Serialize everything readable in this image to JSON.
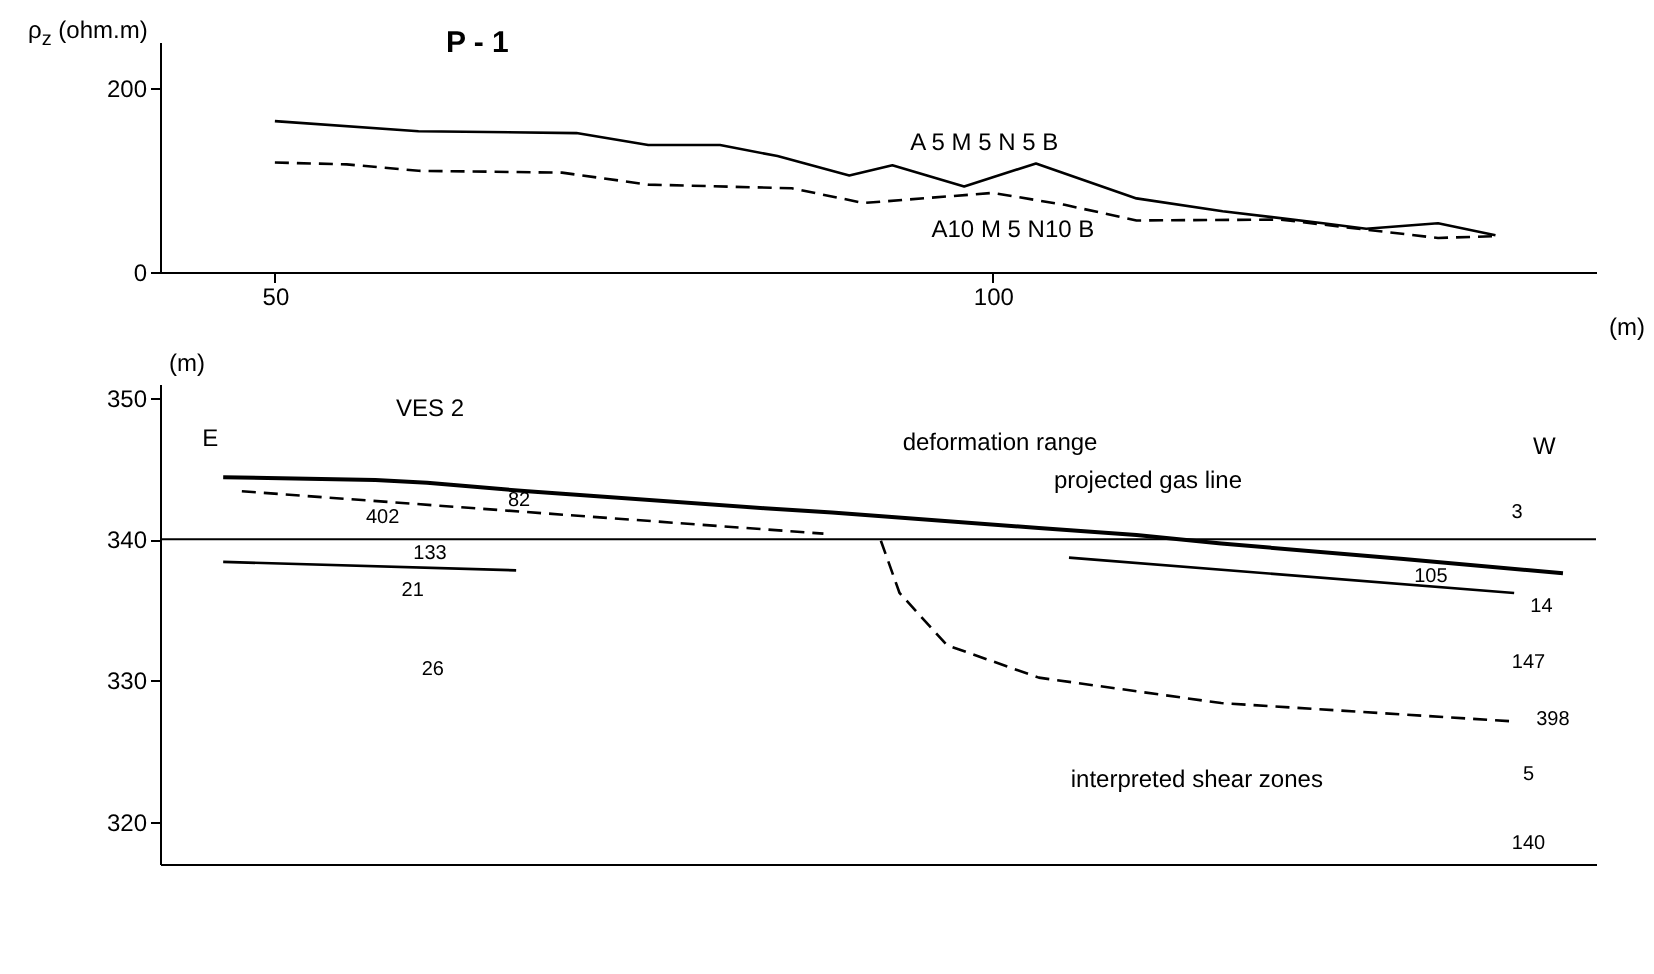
{
  "chart_data": [
    {
      "type": "line",
      "title": "P - 1",
      "ylabel": "ρ$_{z}$ (ohm.m)",
      "xlabel": "(m)",
      "xlim": [
        42,
        142
      ],
      "xticks": [
        50,
        100
      ],
      "ylim": [
        0,
        250
      ],
      "yticks": [
        0,
        200
      ],
      "grid": false,
      "series": [
        {
          "name": "A 5 M 5 N 5 B",
          "color": "#000000",
          "line_style": "solid",
          "x": [
            50,
            60,
            71,
            76,
            81,
            85,
            90,
            93,
            98,
            103,
            110,
            116,
            123,
            126,
            131,
            135
          ],
          "values": [
            164,
            153,
            151,
            138,
            138,
            126,
            105,
            116,
            93,
            118,
            80,
            66,
            53,
            47,
            53,
            40
          ]
        },
        {
          "name": "A10 M 5 N10 B",
          "color": "#000000",
          "line_style": "dashed",
          "x": [
            50,
            55,
            60,
            70,
            76,
            86,
            91,
            100,
            105,
            110,
            120,
            126,
            131,
            135
          ],
          "values": [
            119,
            117,
            110,
            108,
            95,
            91,
            75,
            86,
            73,
            56,
            57,
            46,
            37,
            39
          ]
        }
      ]
    },
    {
      "type": "line",
      "ylabel": "(m)",
      "xlim": [
        42,
        142
      ],
      "ylim": [
        317,
        351
      ],
      "yticks": [
        320,
        330,
        340,
        350
      ],
      "grid": false,
      "tick_labels": "y",
      "ref_lines": [
        {
          "axis": "y",
          "value": 340,
          "color": "#000000"
        }
      ],
      "series": [
        {
          "color": "#000000",
          "line_style": "solid",
          "x": [
            46.4,
            57,
            60.6,
            67.6,
            84.1,
            88.8,
            103.2,
            110,
            115.9,
            128.6,
            139.7
          ],
          "values": [
            344.4,
            344.2,
            344,
            343.4,
            342.2,
            341.9,
            340.8,
            340.3,
            339.7,
            338.6,
            337.6
          ]
        },
        {
          "color": "#000000",
          "line_style": "dashed",
          "x": [
            47.7,
            88.2
          ],
          "values": [
            343.4,
            340.4
          ]
        },
        {
          "color": "#000000",
          "line_style": "solid",
          "x": [
            46.4,
            66.8
          ],
          "values": [
            338.4,
            337.8
          ]
        },
        {
          "color": "#000000",
          "line_style": "solid",
          "x": [
            105.3,
            136.3
          ],
          "values": [
            338.7,
            336.2
          ]
        },
        {
          "color": "#000000",
          "line_style": "dashed",
          "x": [
            92.2,
            93.5,
            96.8,
            103.2,
            115.9,
            136.3
          ],
          "values": [
            339.9,
            336.2,
            332.5,
            330.2,
            328.4,
            327.1
          ]
        }
      ],
      "annotations": [
        "E",
        "W",
        "VES 2",
        "3",
        "deformation range",
        "projected gas line",
        "interpreted shear zones",
        "82",
        "402",
        "133",
        "21",
        "26",
        "105",
        "14",
        "147",
        "398",
        "5",
        "140"
      ]
    }
  ]
}
